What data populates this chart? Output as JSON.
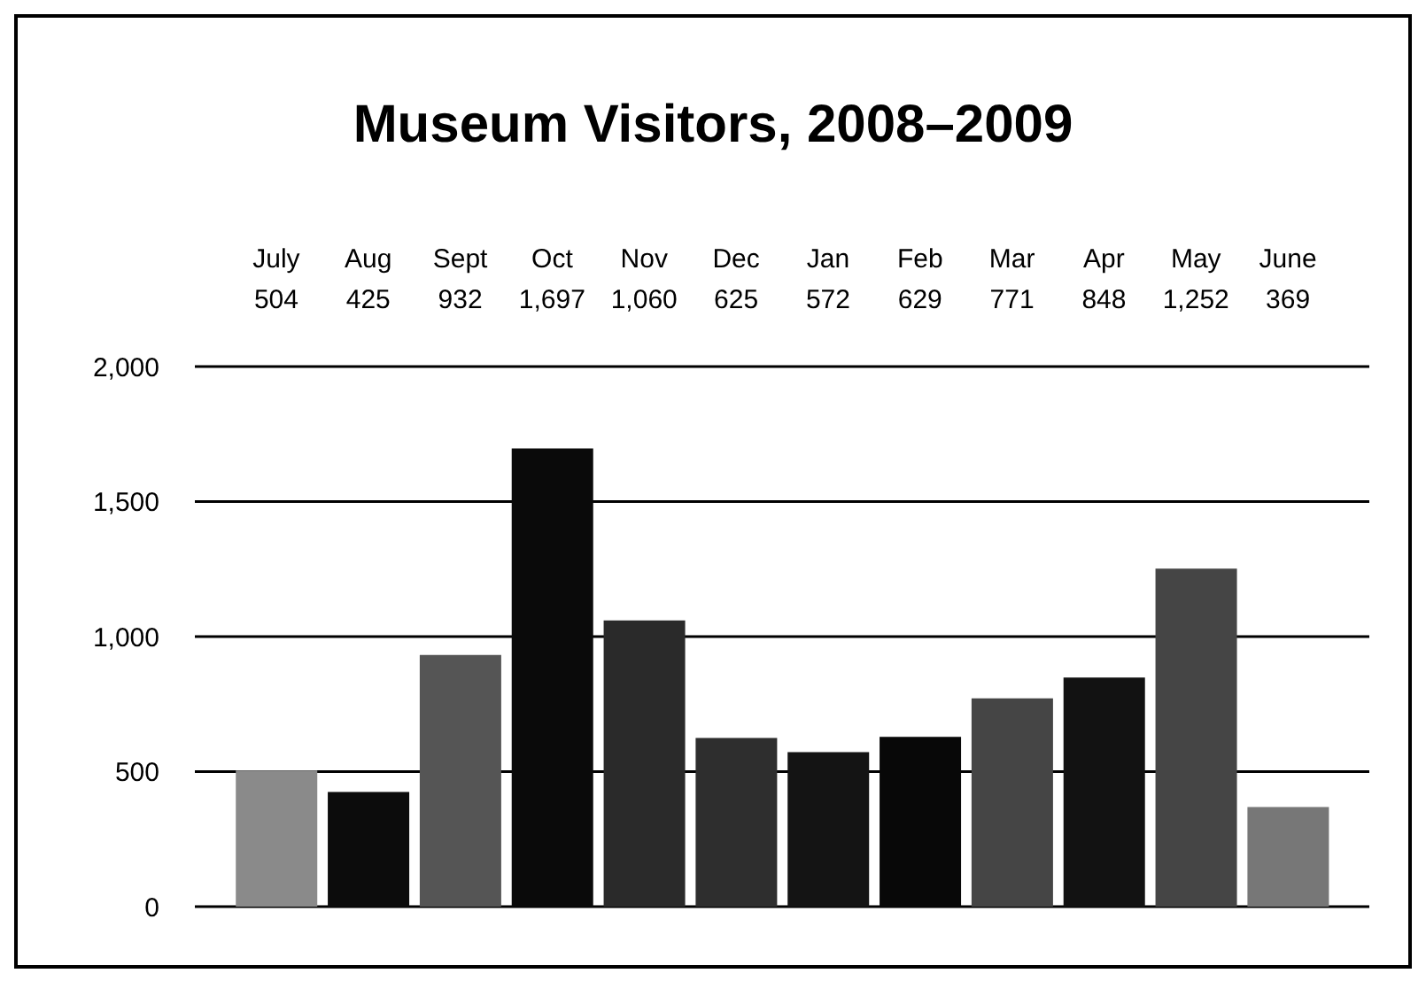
{
  "chart_data": {
    "type": "bar",
    "title": "Museum Visitors, 2008–2009",
    "categories": [
      "July",
      "Aug",
      "Sept",
      "Oct",
      "Nov",
      "Dec",
      "Jan",
      "Feb",
      "Mar",
      "Apr",
      "May",
      "June"
    ],
    "values": [
      504,
      425,
      932,
      1697,
      1060,
      625,
      572,
      629,
      771,
      848,
      1252,
      369
    ],
    "value_labels": [
      "504",
      "425",
      "932",
      "1,697",
      "1,060",
      "625",
      "572",
      "629",
      "771",
      "848",
      "1,252",
      "369"
    ],
    "colors": [
      "#8a8a8a",
      "#0c0c0c",
      "#555555",
      "#0a0a0a",
      "#2a2a2a",
      "#2e2e2e",
      "#141414",
      "#080808",
      "#454545",
      "#121212",
      "#454545",
      "#777777"
    ],
    "ylim": [
      0,
      2000
    ],
    "yticks": [
      0,
      {
        "value": 500,
        "label": "500"
      },
      {
        "value": 1000,
        "label": "1,000"
      },
      {
        "value": 1500,
        "label": "1,500"
      },
      {
        "value": 2000,
        "label": "2,000"
      }
    ],
    "grid": "y"
  }
}
